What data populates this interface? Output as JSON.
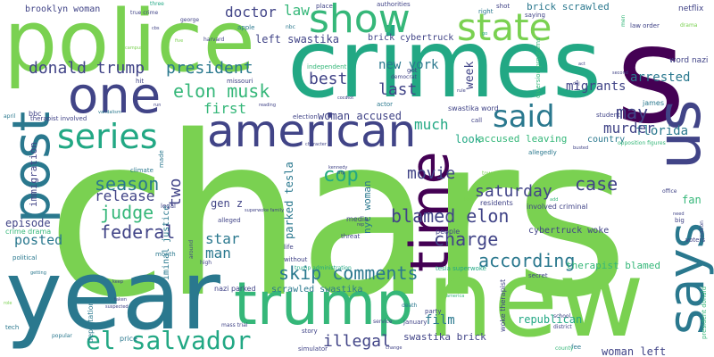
{
  "words": {
    "chars": "chars",
    "crimes": "crimes",
    "police": "police",
    "year": "year",
    "new": "new",
    "says": "says",
    "one": "one",
    "post": "post",
    "trump": "trump",
    "american": "american",
    "time": "time",
    "us": "us",
    "show": "show",
    "state": "state",
    "said": "said",
    "series": "series",
    "el_salvador": "el salvador",
    "donald_trump": "donald trump",
    "president": "president",
    "elon_musk": "elon musk",
    "season": "season",
    "judge": "judge",
    "federal": "federal",
    "release": "release",
    "posted": "posted",
    "skip_comments": "skip comments",
    "blamed_elon": "blamed elon",
    "cop": "cop",
    "movie": "movie",
    "charge": "charge",
    "according": "according",
    "saturday": "saturday",
    "case": "case",
    "florida": "florida",
    "murder": "murder",
    "arrested": "arrested",
    "migrants": "migrants",
    "may": "may",
    "best": "best",
    "last": "last",
    "new_york": "new york",
    "much": "much",
    "first": "first",
    "week": "week",
    "two": "two",
    "star": "star",
    "man": "man",
    "illegal": "illegal",
    "episode": "episode",
    "doctor": "doctor",
    "law": "law",
    "left_swastika": "left swastika",
    "woman_accused": "woman accused",
    "gen_z": "gen z",
    "parked_tesla": "parked tesla",
    "woman_left": "woman left",
    "film": "film",
    "republican": "republican",
    "therapist_blamed": "therapist blamed",
    "accused_leaving": "accused leaving",
    "look": "look",
    "country": "country",
    "fan": "fan",
    "brooklyn_woman": "brooklyn woman",
    "brick_cybertruck": "brick cybertruck",
    "brick_scrawled": "brick scrawled",
    "cybertruck_woke": "cybertruck woke",
    "nyc_woman": "nyc woman",
    "swastika_brick": "swastika brick",
    "scrawled_swastika": "scrawled swastika",
    "immigration": "immigration",
    "netflix": "netflix",
    "word_nazi": "word nazi",
    "crime_drama": "crime drama",
    "criminal_justice": "criminal justice",
    "trump_administration": "trump administration",
    "tesla_superwoke": "tesla superwoke",
    "woke_therapist": "woke therapist",
    "involved_criminal": "involved criminal",
    "therapist_involved": "therapist involved",
    "nazi_parked": "nazi parked",
    "swastika_word": "swastika word",
    "diversion_programs": "diversion programs",
    "president_donald": "president donald",
    "opposition_figures": "opposition figures",
    "mass_trial": "mass trial",
    "law_order": "law order",
    "small_words": [
      "three",
      "true crime",
      "campus",
      "cbs",
      "five",
      "harvard",
      "george",
      "hit",
      "bbc",
      "political",
      "getting",
      "tech",
      "popular",
      "role",
      "apple",
      "nbc",
      "place",
      "authorities",
      "independent",
      "democrat",
      "actor",
      "secret",
      "got",
      "service",
      "missouri",
      "climate",
      "made",
      "legal",
      "deportation",
      "suspected",
      "taken",
      "month",
      "price",
      "alleged",
      "around",
      "high",
      "keep",
      "life",
      "without",
      "media",
      "threat",
      "story",
      "simulator",
      "change",
      "people",
      "residents",
      "voters",
      "school",
      "district",
      "death",
      "america",
      "fee",
      "allegedly",
      "town",
      "big",
      "office",
      "nation",
      "drama",
      "men",
      "saying",
      "shot",
      "right",
      "student",
      "james",
      "call",
      "second",
      "act",
      "rule",
      "go",
      "trip",
      "run",
      "character",
      "election",
      "rep",
      "reading",
      "party",
      "january",
      "county",
      "superwoke family",
      "add",
      "april",
      "bbc",
      "need",
      "busted",
      "kennedy",
      "vandalism",
      "doj",
      "coco",
      "hot",
      "ve"
    ]
  }
}
